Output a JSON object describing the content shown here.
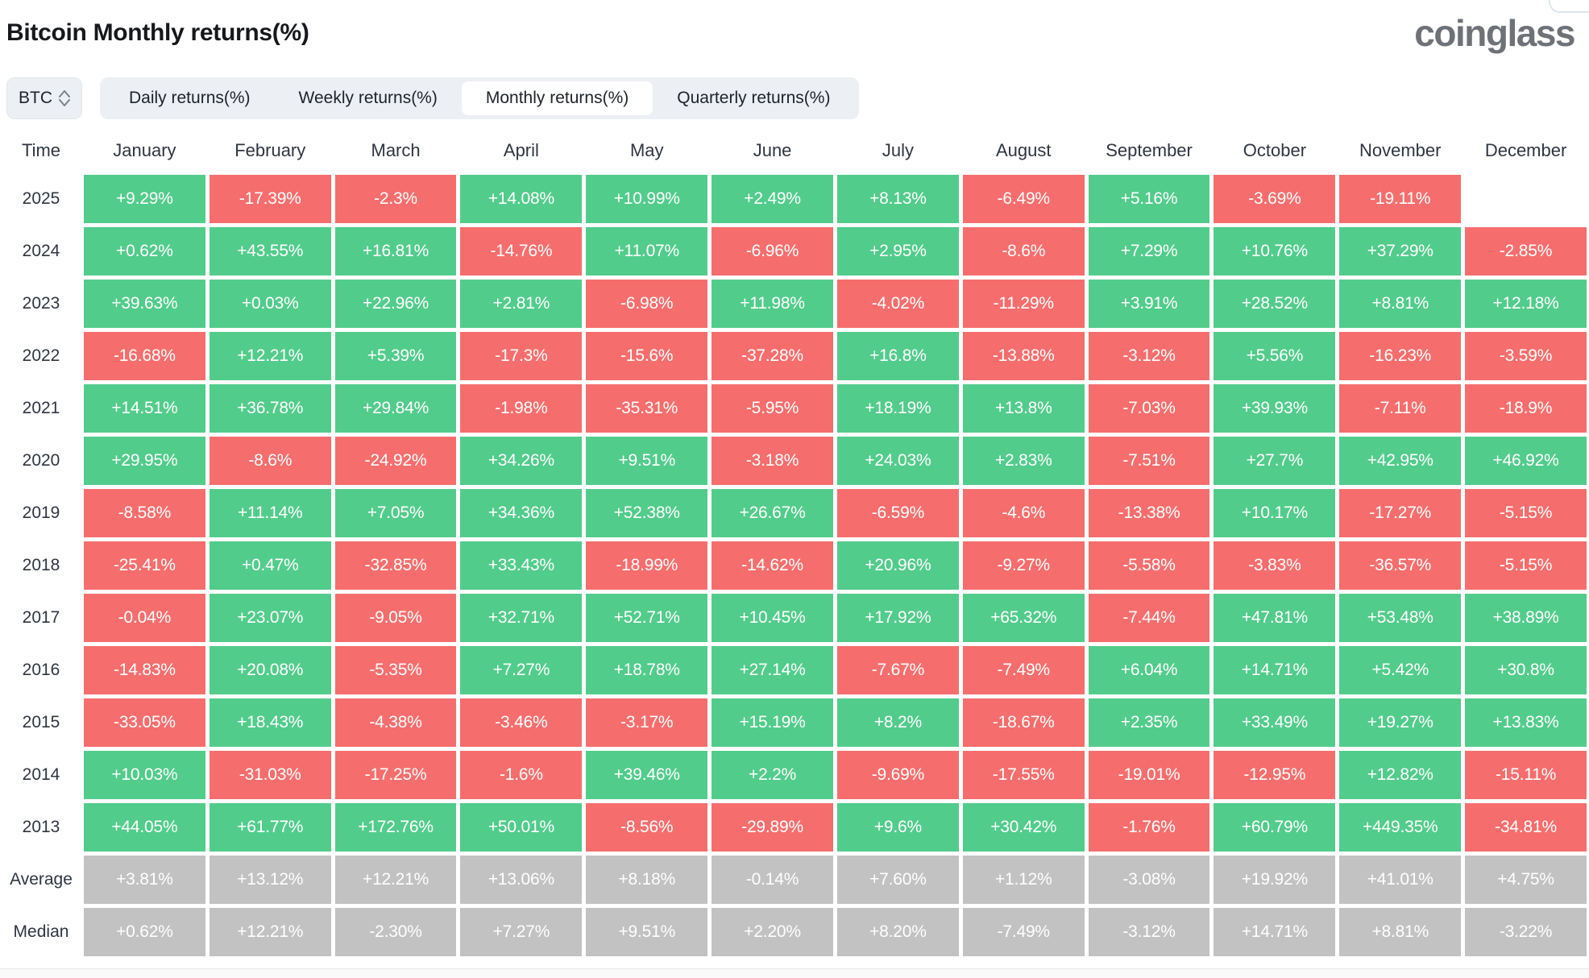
{
  "header": {
    "title": "Bitcoin Monthly returns(%)",
    "logo": "coinglass"
  },
  "toolbar": {
    "coin": "BTC",
    "coin_sort_icon": "up-down-arrows-icon",
    "tabs": [
      {
        "id": "daily",
        "label": "Daily returns(%)",
        "active": false
      },
      {
        "id": "weekly",
        "label": "Weekly returns(%)",
        "active": false
      },
      {
        "id": "monthly",
        "label": "Monthly returns(%)",
        "active": true
      },
      {
        "id": "quarterly",
        "label": "Quarterly returns(%)",
        "active": false
      }
    ]
  },
  "theme": {
    "positive_green": "#52cc8b",
    "negative_red": "#f56e6d",
    "summary_gray": "#c2c2c2",
    "cell_text": "#ffffff",
    "tab_bar_bg": "#eceff4"
  },
  "chart_data": {
    "type": "heatmap",
    "title": "Bitcoin Monthly returns(%)",
    "columns": [
      "Time",
      "January",
      "February",
      "March",
      "April",
      "May",
      "June",
      "July",
      "August",
      "September",
      "October",
      "November",
      "December"
    ],
    "rows": [
      {
        "label": "2025",
        "summary": false,
        "cells": [
          "+9.29%",
          "-17.39%",
          "-2.3%",
          "+14.08%",
          "+10.99%",
          "+2.49%",
          "+8.13%",
          "-6.49%",
          "+5.16%",
          "-3.69%",
          "-19.11%",
          ""
        ]
      },
      {
        "label": "2024",
        "summary": false,
        "cells": [
          "+0.62%",
          "+43.55%",
          "+16.81%",
          "-14.76%",
          "+11.07%",
          "-6.96%",
          "+2.95%",
          "-8.6%",
          "+7.29%",
          "+10.76%",
          "+37.29%",
          "-2.85%"
        ]
      },
      {
        "label": "2023",
        "summary": false,
        "cells": [
          "+39.63%",
          "+0.03%",
          "+22.96%",
          "+2.81%",
          "-6.98%",
          "+11.98%",
          "-4.02%",
          "-11.29%",
          "+3.91%",
          "+28.52%",
          "+8.81%",
          "+12.18%"
        ]
      },
      {
        "label": "2022",
        "summary": false,
        "cells": [
          "-16.68%",
          "+12.21%",
          "+5.39%",
          "-17.3%",
          "-15.6%",
          "-37.28%",
          "+16.8%",
          "-13.88%",
          "-3.12%",
          "+5.56%",
          "-16.23%",
          "-3.59%"
        ]
      },
      {
        "label": "2021",
        "summary": false,
        "cells": [
          "+14.51%",
          "+36.78%",
          "+29.84%",
          "-1.98%",
          "-35.31%",
          "-5.95%",
          "+18.19%",
          "+13.8%",
          "-7.03%",
          "+39.93%",
          "-7.11%",
          "-18.9%"
        ]
      },
      {
        "label": "2020",
        "summary": false,
        "cells": [
          "+29.95%",
          "-8.6%",
          "-24.92%",
          "+34.26%",
          "+9.51%",
          "-3.18%",
          "+24.03%",
          "+2.83%",
          "-7.51%",
          "+27.7%",
          "+42.95%",
          "+46.92%"
        ]
      },
      {
        "label": "2019",
        "summary": false,
        "cells": [
          "-8.58%",
          "+11.14%",
          "+7.05%",
          "+34.36%",
          "+52.38%",
          "+26.67%",
          "-6.59%",
          "-4.6%",
          "-13.38%",
          "+10.17%",
          "-17.27%",
          "-5.15%"
        ]
      },
      {
        "label": "2018",
        "summary": false,
        "cells": [
          "-25.41%",
          "+0.47%",
          "-32.85%",
          "+33.43%",
          "-18.99%",
          "-14.62%",
          "+20.96%",
          "-9.27%",
          "-5.58%",
          "-3.83%",
          "-36.57%",
          "-5.15%"
        ]
      },
      {
        "label": "2017",
        "summary": false,
        "cells": [
          "-0.04%",
          "+23.07%",
          "-9.05%",
          "+32.71%",
          "+52.71%",
          "+10.45%",
          "+17.92%",
          "+65.32%",
          "-7.44%",
          "+47.81%",
          "+53.48%",
          "+38.89%"
        ]
      },
      {
        "label": "2016",
        "summary": false,
        "cells": [
          "-14.83%",
          "+20.08%",
          "-5.35%",
          "+7.27%",
          "+18.78%",
          "+27.14%",
          "-7.67%",
          "-7.49%",
          "+6.04%",
          "+14.71%",
          "+5.42%",
          "+30.8%"
        ]
      },
      {
        "label": "2015",
        "summary": false,
        "cells": [
          "-33.05%",
          "+18.43%",
          "-4.38%",
          "-3.46%",
          "-3.17%",
          "+15.19%",
          "+8.2%",
          "-18.67%",
          "+2.35%",
          "+33.49%",
          "+19.27%",
          "+13.83%"
        ]
      },
      {
        "label": "2014",
        "summary": false,
        "cells": [
          "+10.03%",
          "-31.03%",
          "-17.25%",
          "-1.6%",
          "+39.46%",
          "+2.2%",
          "-9.69%",
          "-17.55%",
          "-19.01%",
          "-12.95%",
          "+12.82%",
          "-15.11%"
        ]
      },
      {
        "label": "2013",
        "summary": false,
        "cells": [
          "+44.05%",
          "+61.77%",
          "+172.76%",
          "+50.01%",
          "-8.56%",
          "-29.89%",
          "+9.6%",
          "+30.42%",
          "-1.76%",
          "+60.79%",
          "+449.35%",
          "-34.81%"
        ]
      },
      {
        "label": "Average",
        "summary": true,
        "cells": [
          "+3.81%",
          "+13.12%",
          "+12.21%",
          "+13.06%",
          "+8.18%",
          "-0.14%",
          "+7.60%",
          "+1.12%",
          "-3.08%",
          "+19.92%",
          "+41.01%",
          "+4.75%"
        ]
      },
      {
        "label": "Median",
        "summary": true,
        "cells": [
          "+0.62%",
          "+12.21%",
          "-2.30%",
          "+7.27%",
          "+9.51%",
          "+2.20%",
          "+8.20%",
          "-7.49%",
          "-3.12%",
          "+14.71%",
          "+8.81%",
          "-3.22%"
        ]
      }
    ]
  }
}
